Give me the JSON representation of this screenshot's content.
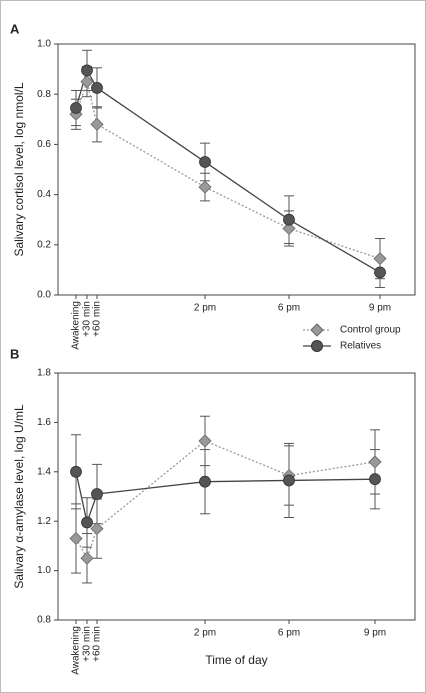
{
  "chart_data": [
    {
      "type": "line",
      "panel": "A",
      "y_label": "Salivary cortisol level, log nmol/L",
      "categories": [
        "Awakening",
        "+30 min",
        "+60 min",
        "2 pm",
        "6 pm",
        "9 pm"
      ],
      "ylim": [
        0,
        1
      ],
      "yticks": [
        {
          "value": 0,
          "label": "0.0"
        },
        {
          "value": 0.2,
          "label": "0.2"
        },
        {
          "value": 0.4,
          "label": "0.4"
        },
        {
          "value": 0.6,
          "label": "0.6"
        },
        {
          "value": 0.8,
          "label": "0.8"
        },
        {
          "value": 1,
          "label": "1.0"
        }
      ],
      "series": [
        {
          "name": "Control group",
          "color": "#999999",
          "marker": "diamond",
          "linestyle": "dotted",
          "values": [
            0.72,
            0.85,
            0.68,
            0.43,
            0.265,
            0.145
          ],
          "errors": [
            0.06,
            0.06,
            0.07,
            0.055,
            0.07,
            0.08
          ]
        },
        {
          "name": "Relatives",
          "color": "#555555",
          "marker": "circle",
          "linestyle": "solid",
          "values": [
            0.745,
            0.895,
            0.825,
            0.53,
            0.3,
            0.09
          ],
          "errors": [
            0.07,
            0.08,
            0.08,
            0.075,
            0.095,
            0.06
          ]
        }
      ]
    },
    {
      "type": "line",
      "panel": "B",
      "y_label": "Salivary α-amylase level, log U/mL",
      "x_label": "Time of day",
      "categories": [
        "Awakening",
        "+30 min",
        "+60 min",
        "2 pm",
        "6 pm",
        "9 pm"
      ],
      "ylim": [
        0.8,
        1.8
      ],
      "yticks": [
        0.8,
        {
          "value": 1,
          "label": "1.0"
        },
        1.2,
        1.4,
        1.6,
        1.8
      ],
      "series": [
        {
          "color": "#999999",
          "marker": "diamond",
          "linestyle": "dotted",
          "values": [
            1.13,
            1.05,
            1.17,
            1.525,
            1.385,
            1.44
          ],
          "errors": [
            0.14,
            0.1,
            0.12,
            0.1,
            0.12,
            0.13
          ]
        },
        {
          "color": "#555555",
          "marker": "circle",
          "linestyle": "solid",
          "values": [
            1.4,
            1.195,
            1.31,
            1.36,
            1.365,
            1.37
          ],
          "errors": [
            0.15,
            0.1,
            0.12,
            0.13,
            0.15,
            0.12
          ]
        }
      ]
    }
  ]
}
